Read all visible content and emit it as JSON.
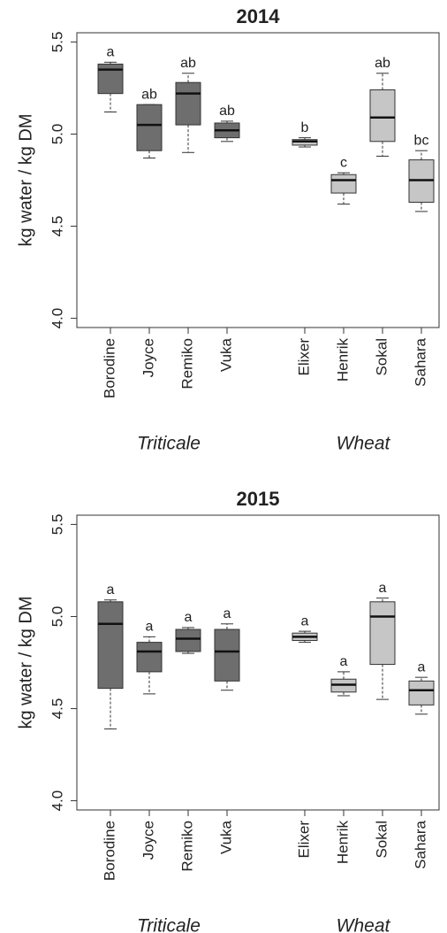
{
  "chart_data": [
    {
      "type": "box",
      "title": "2014",
      "ylabel": "kg water / kg DM",
      "ylim": [
        3.95,
        5.55
      ],
      "yticks": [
        {
          "value": 4,
          "label": "4.0"
        },
        4.5,
        {
          "value": 5,
          "label": "5.0"
        },
        5.5
      ],
      "groups": [
        {
          "name": "Triticale",
          "color": "#6e6e6e",
          "categories": [
            "Borodine",
            "Joyce",
            "Remiko",
            "Vuka"
          ],
          "boxes": [
            {
              "min": 5.12,
              "q1": 5.22,
              "median": 5.35,
              "q3": 5.38,
              "max": 5.39,
              "label": "a"
            },
            {
              "min": 4.87,
              "q1": 4.91,
              "median": 5.05,
              "q3": 5.16,
              "max": 5.16,
              "label": "ab"
            },
            {
              "min": 4.9,
              "q1": 5.05,
              "median": 5.22,
              "q3": 5.28,
              "max": 5.33,
              "label": "ab"
            },
            {
              "min": 4.96,
              "q1": 4.98,
              "median": 5.02,
              "q3": 5.06,
              "max": 5.07,
              "label": "ab"
            }
          ]
        },
        {
          "name": "Wheat",
          "color": "#c6c6c6",
          "categories": [
            "Elixer",
            "Henrik",
            "Sokal",
            "Sahara"
          ],
          "boxes": [
            {
              "min": 4.93,
              "q1": 4.94,
              "median": 4.96,
              "q3": 4.97,
              "max": 4.98,
              "label": "b"
            },
            {
              "min": 4.62,
              "q1": 4.68,
              "median": 4.75,
              "q3": 4.78,
              "max": 4.79,
              "label": "c"
            },
            {
              "min": 4.88,
              "q1": 4.96,
              "median": 5.09,
              "q3": 5.24,
              "max": 5.33,
              "label": "ab"
            },
            {
              "min": 4.58,
              "q1": 4.63,
              "median": 4.75,
              "q3": 4.86,
              "max": 4.91,
              "label": "bc"
            }
          ]
        }
      ]
    },
    {
      "type": "box",
      "title": "2015",
      "ylabel": "kg water / kg DM",
      "ylim": [
        3.95,
        5.55
      ],
      "yticks": [
        {
          "value": 4,
          "label": "4.0"
        },
        4.5,
        {
          "value": 5,
          "label": "5.0"
        },
        5.5
      ],
      "groups": [
        {
          "name": "Triticale",
          "color": "#6e6e6e",
          "categories": [
            "Borodine",
            "Joyce",
            "Remiko",
            "Vuka"
          ],
          "boxes": [
            {
              "min": 4.39,
              "q1": 4.61,
              "median": 4.96,
              "q3": 5.08,
              "max": 5.09,
              "label": "a"
            },
            {
              "min": 4.58,
              "q1": 4.7,
              "median": 4.81,
              "q3": 4.86,
              "max": 4.89,
              "label": "a"
            },
            {
              "min": 4.8,
              "q1": 4.81,
              "median": 4.88,
              "q3": 4.93,
              "max": 4.94,
              "label": "a"
            },
            {
              "min": 4.6,
              "q1": 4.65,
              "median": 4.81,
              "q3": 4.93,
              "max": 4.96,
              "label": "a"
            }
          ]
        },
        {
          "name": "Wheat",
          "color": "#c6c6c6",
          "categories": [
            "Elixer",
            "Henrik",
            "Sokal",
            "Sahara"
          ],
          "boxes": [
            {
              "min": 4.86,
              "q1": 4.87,
              "median": 4.89,
              "q3": 4.91,
              "max": 4.92,
              "label": "a"
            },
            {
              "min": 4.57,
              "q1": 4.59,
              "median": 4.63,
              "q3": 4.66,
              "max": 4.7,
              "label": "a"
            },
            {
              "min": 4.55,
              "q1": 4.74,
              "median": 5.0,
              "q3": 5.08,
              "max": 5.1,
              "label": "a"
            },
            {
              "min": 4.47,
              "q1": 4.52,
              "median": 4.6,
              "q3": 4.65,
              "max": 4.67,
              "label": "a"
            }
          ]
        }
      ]
    }
  ]
}
